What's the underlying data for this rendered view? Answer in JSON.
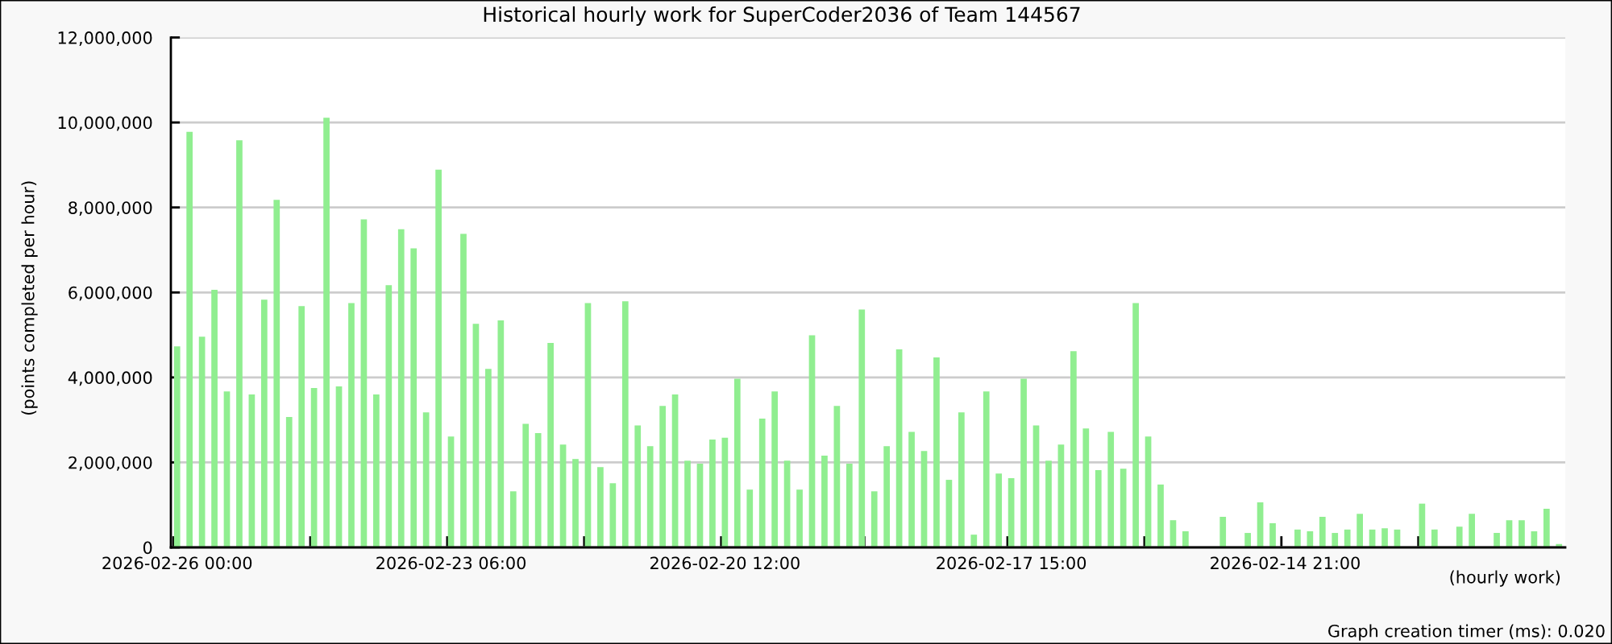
{
  "chart_data": {
    "type": "bar",
    "title": "Historical hourly work for SuperCoder2036 of Team 144567",
    "xlabel": "(hourly work)",
    "ylabel": "(points completed per hour)",
    "categories": [
      "2026-02-26 00:00",
      null,
      null,
      null,
      null,
      null,
      null,
      null,
      null,
      null,
      null,
      null,
      null,
      null,
      null,
      null,
      null,
      null,
      null,
      null,
      null,
      null,
      "2026-02-23 06:00",
      null,
      null,
      null,
      null,
      null,
      null,
      null,
      null,
      null,
      null,
      null,
      null,
      null,
      null,
      null,
      null,
      null,
      null,
      null,
      null,
      null,
      "2026-02-20 12:00",
      null,
      null,
      null,
      null,
      null,
      null,
      null,
      null,
      null,
      null,
      null,
      null,
      null,
      null,
      null,
      null,
      null,
      null,
      null,
      null,
      null,
      null,
      "2026-02-17 15:00",
      null,
      null,
      null,
      null,
      null,
      null,
      null,
      null,
      null,
      null,
      null,
      null,
      null,
      null,
      null,
      null,
      null,
      null,
      null,
      null,
      null,
      "2026-02-14 21:00",
      null,
      null,
      null,
      null,
      null,
      null,
      null,
      null,
      null,
      null,
      null,
      null,
      null,
      null,
      null,
      null,
      null,
      null,
      null,
      null,
      null,
      null
    ],
    "values": [
      4730000,
      9780000,
      4960000,
      6060000,
      3670000,
      9580000,
      3600000,
      5830000,
      8180000,
      3070000,
      5680000,
      3750000,
      10110000,
      3790000,
      5750000,
      7720000,
      3600000,
      6170000,
      7490000,
      7040000,
      3180000,
      8890000,
      2610000,
      7380000,
      5260000,
      4200000,
      5340000,
      1320000,
      2910000,
      2690000,
      4810000,
      2420000,
      2080000,
      5750000,
      1890000,
      1510000,
      5790000,
      2870000,
      2380000,
      3330000,
      3600000,
      2040000,
      1970000,
      2540000,
      2580000,
      3970000,
      1360000,
      3030000,
      3670000,
      2040000,
      1360000,
      4990000,
      2160000,
      3330000,
      1970000,
      5600000,
      1320000,
      2380000,
      4660000,
      2720000,
      2270000,
      4470000,
      1590000,
      3180000,
      300000,
      3670000,
      1740000,
      1630000,
      3970000,
      2870000,
      2040000,
      2420000,
      4620000,
      2800000,
      1820000,
      2720000,
      1850000,
      5750000,
      2610000,
      1480000,
      640000,
      380000,
      null,
      null,
      720000,
      null,
      340000,
      1060000,
      570000,
      null,
      420000,
      380000,
      720000,
      340000,
      420000,
      790000,
      420000,
      450000,
      420000,
      null,
      1030000,
      420000,
      null,
      490000,
      790000,
      null,
      340000,
      640000,
      640000,
      380000,
      910000,
      80000
    ],
    "color": "#90ee90",
    "ylim": [
      0,
      12000000
    ],
    "yticks": [
      0,
      {
        "value": 2000000,
        "label": "2,000,000"
      },
      {
        "value": 4000000,
        "label": "4,000,000"
      },
      {
        "value": 6000000,
        "label": "6,000,000"
      },
      {
        "value": 8000000,
        "label": "8,000,000"
      },
      {
        "value": 10000000,
        "label": "10,000,000"
      },
      {
        "value": 12000000,
        "label": "12,000,000"
      }
    ],
    "grid": "y",
    "annotations": [
      "Graph creation timer (ms): 0.020"
    ]
  }
}
